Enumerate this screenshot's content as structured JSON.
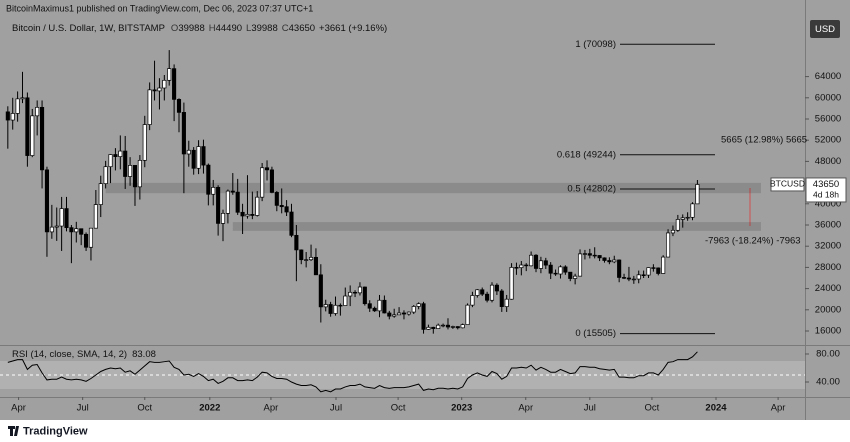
{
  "header": {
    "publisher": "BitcoinMaximus1 published on TradingView.com, Dec 06, 2023 07:37 UTC+1",
    "symbol": "Bitcoin / U.S. Dollar, 1W, BITSTAMP",
    "ohlc_letters": [
      "O",
      "H",
      "L",
      "C"
    ],
    "change": "+3661 (+9.16%)",
    "currency": "USD"
  },
  "chart_data": [
    {
      "type": "candlestick",
      "open": [
        57350,
        55800,
        57050,
        59800,
        60000,
        49100,
        56600,
        58200,
        46400,
        34700,
        35600,
        35800,
        39100,
        35500,
        34700,
        35300,
        34250,
        31800,
        35400,
        39850,
        43800,
        47000,
        49300,
        48900,
        49950,
        45150,
        47250,
        43200,
        48200,
        54950,
        61500,
        61300,
        61850,
        63300,
        65500,
        59700,
        57250,
        49400,
        50100,
        46700,
        50800,
        47300,
        41800,
        43100,
        36300,
        38200,
        42400,
        42200,
        38400,
        37700,
        38000,
        37800,
        41250,
        46800,
        46400,
        42150,
        39700,
        39450,
        38450,
        34050,
        31300,
        29450,
        29450,
        29900,
        26600,
        20550,
        21000,
        19300,
        20850,
        20800,
        22600,
        23300,
        23200,
        24300,
        21150,
        20300,
        19800,
        21800,
        19400,
        18800,
        19050,
        19400,
        19200,
        19570,
        20630,
        21150,
        16300,
        16700,
        16450,
        17100,
        17100,
        16750,
        16840,
        16600,
        17200,
        20880,
        22700,
        23780,
        22950,
        21800,
        24650,
        23550,
        20600,
        22000,
        28000,
        27950,
        28450,
        28300,
        30300,
        27800,
        29250,
        28430,
        26900,
        26750,
        28100,
        27100,
        25900,
        26350,
        30550,
        30600,
        30300,
        30250,
        29800,
        29300,
        29050,
        29400,
        26100,
        26000,
        25800,
        25800,
        26600,
        26550,
        27950,
        27900,
        26850,
        29950,
        34500,
        35000,
        37050,
        37350,
        37450,
        39988
      ],
      "high": [
        58400,
        60000,
        61200,
        64900,
        61000,
        57900,
        59500,
        59500,
        47000,
        39800,
        39300,
        41300,
        41300,
        36000,
        36600,
        35100,
        34600,
        35400,
        42600,
        45300,
        48100,
        49400,
        50500,
        52900,
        52800,
        48800,
        47300,
        49200,
        56600,
        62900,
        67000,
        63700,
        64300,
        69000,
        66300,
        59900,
        59100,
        51900,
        50700,
        52000,
        52100,
        47600,
        44500,
        43500,
        38900,
        42700,
        45800,
        44700,
        40000,
        45400,
        42300,
        42400,
        47700,
        48200,
        47000,
        42400,
        42900,
        40700,
        40000,
        36000,
        31400,
        30900,
        32300,
        31600,
        28600,
        21900,
        21500,
        22500,
        21200,
        24200,
        24600,
        23700,
        25200,
        24400,
        21800,
        20600,
        22800,
        22700,
        19800,
        20200,
        20500,
        19900,
        19700,
        20900,
        21400,
        21500,
        17200,
        16800,
        17400,
        17400,
        18400,
        17000,
        16900,
        17400,
        21200,
        23400,
        23900,
        24200,
        23400,
        25200,
        25000,
        23900,
        22800,
        28800,
        28900,
        29200,
        28800,
        31000,
        30500,
        30000,
        29800,
        29000,
        27600,
        28400,
        28400,
        27100,
        26800,
        31400,
        31300,
        31500,
        31800,
        30300,
        29900,
        29900,
        30200,
        29500,
        26800,
        28100,
        26400,
        27400,
        27400,
        28000,
        28600,
        28000,
        30300,
        35200,
        35900,
        37900,
        38000,
        38400,
        40300,
        44490
      ],
      "low": [
        50400,
        54000,
        55500,
        59000,
        47000,
        48800,
        52900,
        42900,
        30000,
        33400,
        33000,
        31100,
        34800,
        28800,
        32700,
        32200,
        31100,
        29300,
        35400,
        37500,
        42900,
        43900,
        46300,
        46500,
        42800,
        43400,
        39600,
        40800,
        46900,
        53900,
        59500,
        57800,
        59500,
        62300,
        55600,
        53500,
        42000,
        47000,
        45500,
        45600,
        45700,
        39700,
        39700,
        34000,
        32950,
        36300,
        41700,
        37900,
        34300,
        37200,
        37100,
        37600,
        40500,
        44400,
        42000,
        38600,
        38200,
        37700,
        33700,
        25400,
        28600,
        28000,
        29200,
        26600,
        17600,
        19700,
        18700,
        18900,
        18900,
        20800,
        20700,
        22400,
        22700,
        20800,
        19600,
        19600,
        18600,
        19300,
        18200,
        18500,
        19100,
        18200,
        18900,
        19200,
        20100,
        15500,
        16200,
        15500,
        16400,
        16700,
        16300,
        16400,
        16300,
        16500,
        17200,
        20500,
        22300,
        22600,
        21400,
        21400,
        22800,
        19600,
        19600,
        21900,
        26600,
        26500,
        27300,
        28200,
        27100,
        26900,
        27700,
        25800,
        26400,
        25900,
        26600,
        25400,
        24800,
        26300,
        29500,
        29700,
        29700,
        29200,
        28900,
        28600,
        28800,
        25200,
        25800,
        25400,
        24900,
        25000,
        26000,
        26000,
        27200,
        26500,
        26800,
        29900,
        33900,
        34700,
        35500,
        36800,
        36900,
        39988
      ],
      "close": [
        55800,
        57050,
        59800,
        60000,
        49100,
        56600,
        58200,
        46400,
        34700,
        35600,
        35800,
        39100,
        35500,
        34700,
        35300,
        34250,
        31800,
        35400,
        39850,
        43800,
        47000,
        49300,
        48900,
        49950,
        45150,
        47250,
        43200,
        48200,
        54950,
        61500,
        61300,
        61850,
        63300,
        65500,
        59700,
        57250,
        49400,
        50100,
        46700,
        50800,
        47300,
        41800,
        43100,
        36300,
        38200,
        42400,
        42200,
        38400,
        37700,
        38000,
        37800,
        41250,
        46800,
        46400,
        42150,
        39700,
        39450,
        38450,
        34050,
        31300,
        29450,
        29450,
        29900,
        26600,
        20550,
        21000,
        19300,
        20850,
        20800,
        22600,
        23300,
        23200,
        24300,
        21150,
        20300,
        19800,
        21800,
        19400,
        18800,
        19050,
        19400,
        19200,
        19570,
        20630,
        21150,
        16300,
        16700,
        16450,
        17100,
        17100,
        16750,
        16840,
        16600,
        17200,
        20880,
        22700,
        23780,
        22950,
        21800,
        24650,
        23550,
        20600,
        22000,
        28000,
        27950,
        28450,
        28300,
        30300,
        27800,
        29250,
        28430,
        26900,
        26750,
        28100,
        27100,
        25900,
        26350,
        30550,
        30600,
        30300,
        30250,
        29800,
        29300,
        29050,
        29400,
        26100,
        26000,
        25800,
        25800,
        26600,
        26550,
        27950,
        27900,
        26850,
        29950,
        34500,
        35000,
        37050,
        37350,
        37450,
        39990,
        43650
      ],
      "up_color": "#ffffff",
      "down_color": "#000000",
      "grid": false,
      "ylim": [
        13358,
        75057
      ],
      "yticks": [
        16000,
        20000,
        24000,
        28000,
        32000,
        36000,
        40000,
        48000,
        52000,
        56000,
        60000,
        64000
      ],
      "xlim": [
        -1.6,
        163.0
      ],
      "xticks": [
        {
          "value": 2.2,
          "label": "Apr"
        },
        {
          "value": 15.3,
          "label": "Jul"
        },
        {
          "value": 28.0,
          "label": "Oct"
        },
        {
          "value": 41.3,
          "label": "2022"
        },
        {
          "value": 53.8,
          "label": "Apr"
        },
        {
          "value": 67.1,
          "label": "Jul"
        },
        {
          "value": 79.8,
          "label": "Oct"
        },
        {
          "value": 92.8,
          "label": "2023"
        },
        {
          "value": 105.9,
          "label": "Apr"
        },
        {
          "value": 119.0,
          "label": "Jul"
        },
        {
          "value": 131.7,
          "label": "Oct"
        },
        {
          "value": 144.8,
          "label": "2024"
        },
        {
          "value": 157.5,
          "label": "Apr"
        }
      ],
      "zones": [
        {
          "from": 42000,
          "to": 43950,
          "start": 20,
          "end": 154
        },
        {
          "from": 34900,
          "to": 36550,
          "start": 46,
          "end": 154
        }
      ],
      "fib_levels": [
        {
          "label": "1 (70098)",
          "value": 70098
        },
        {
          "label": "0.618 (49244)",
          "value": 49244
        },
        {
          "label": "0.5 (42802)",
          "value": 42802
        },
        {
          "label": "0 (15505)",
          "value": 15505
        }
      ],
      "measurements": [
        "5665 (12.98%) 5665",
        "-7963 (-18.24%) -7963"
      ],
      "symbol_label": "BTCUSD",
      "countdown": "4d 18h"
    },
    {
      "type": "line",
      "title": "RSI (14, close, SMA, 14, 2)",
      "color": "#000000",
      "values": [
        68,
        70,
        72,
        72,
        58,
        64,
        65,
        53,
        43,
        44,
        44,
        47,
        44,
        43,
        44,
        43,
        41,
        45,
        50,
        55,
        58,
        60,
        59,
        60,
        54,
        56,
        51,
        57,
        63,
        69,
        68,
        68,
        69,
        70,
        61,
        58,
        50,
        51,
        48,
        52,
        48,
        42,
        44,
        38,
        41,
        46,
        46,
        42,
        42,
        43,
        42,
        47,
        54,
        53,
        48,
        45,
        45,
        44,
        40,
        37,
        35,
        35,
        36,
        33,
        26,
        28,
        26,
        30,
        30,
        33,
        35,
        35,
        37,
        33,
        32,
        31,
        35,
        32,
        31,
        32,
        32,
        32,
        33,
        35,
        37,
        28,
        30,
        29,
        31,
        31,
        30,
        31,
        30,
        33,
        45,
        50,
        53,
        50,
        48,
        55,
        52,
        44,
        48,
        60,
        60,
        61,
        60,
        64,
        57,
        61,
        58,
        54,
        54,
        58,
        55,
        52,
        53,
        62,
        62,
        61,
        61,
        59,
        58,
        57,
        58,
        47,
        47,
        46,
        46,
        49,
        49,
        53,
        53,
        50,
        58,
        68,
        69,
        72,
        72,
        72,
        76,
        83.08
      ],
      "ylim": [
        18.6,
        91.4
      ],
      "yticks": [
        {
          "value": 80,
          "label": "80.00"
        },
        {
          "value": 40,
          "label": "40.00"
        }
      ],
      "band": [
        30,
        70
      ],
      "midline": 50
    }
  ],
  "footer": {
    "brand": "TradingView"
  }
}
